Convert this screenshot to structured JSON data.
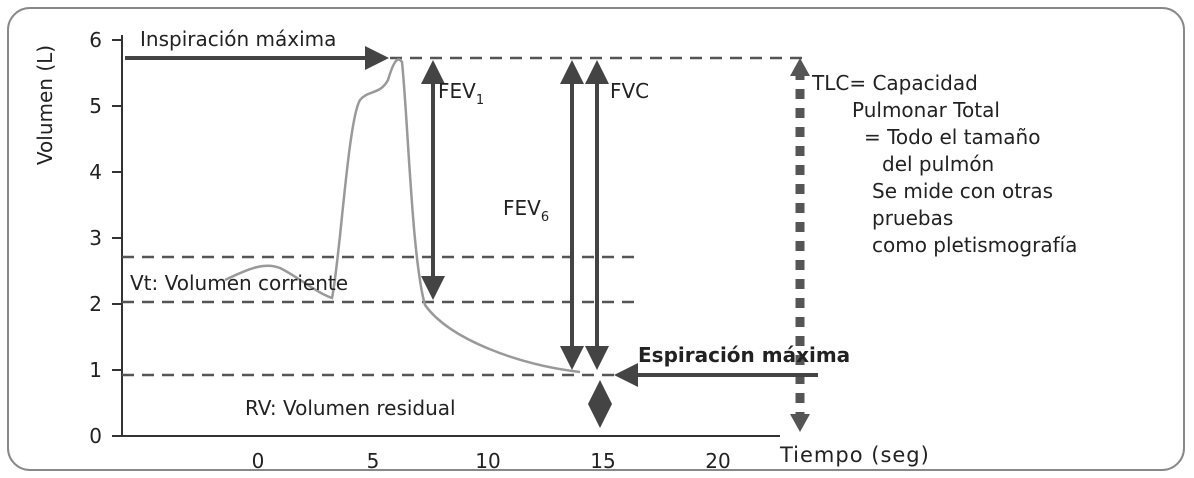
{
  "axes": {
    "y_label": "Volumen (L)",
    "x_label": "Tiempo (seg)",
    "y_ticks": [
      0,
      1,
      2,
      3,
      4,
      5,
      6
    ],
    "x_ticks": [
      0,
      5,
      10,
      15,
      20
    ]
  },
  "annotations": {
    "max_inspiration": "Inspiración máxima",
    "max_expiration": "Espiración máxima",
    "tidal_volume": "Vt: Volumen corriente",
    "residual_volume": "RV: Volumen residual",
    "fev1": {
      "text": "FEV",
      "sub": "1"
    },
    "fev6": {
      "text": "FEV",
      "sub": "6"
    },
    "fvc": "FVC",
    "tlc": [
      "TLC= Capacidad",
      "Pulmonar Total",
      "= Todo el tamaño",
      "del pulmón",
      "Se mide con otras",
      "pruebas",
      "como pletismografía"
    ]
  }
}
